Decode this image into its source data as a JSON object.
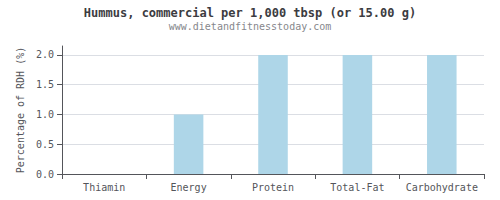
{
  "chart_data": {
    "type": "bar",
    "title": "Hummus, commercial per 1,000 tbsp (or 15.00 g)",
    "subtitle": "www.dietandfitnesstoday.com",
    "categories": [
      "Thiamin",
      "Energy",
      "Protein",
      "Total-Fat",
      "Carbohydrate"
    ],
    "values": [
      0.0,
      1.0,
      2.0,
      2.0,
      2.0
    ],
    "color": "#aed6e8",
    "ylabel": "Percentage of RDH (%)",
    "ylim": [
      0,
      2.15
    ],
    "yticks": [
      {
        "value": 0,
        "label": "0.0"
      },
      0.5,
      {
        "value": 1,
        "label": "1.0"
      },
      1.5,
      {
        "value": 2,
        "label": "2.0"
      }
    ],
    "grid": true
  }
}
